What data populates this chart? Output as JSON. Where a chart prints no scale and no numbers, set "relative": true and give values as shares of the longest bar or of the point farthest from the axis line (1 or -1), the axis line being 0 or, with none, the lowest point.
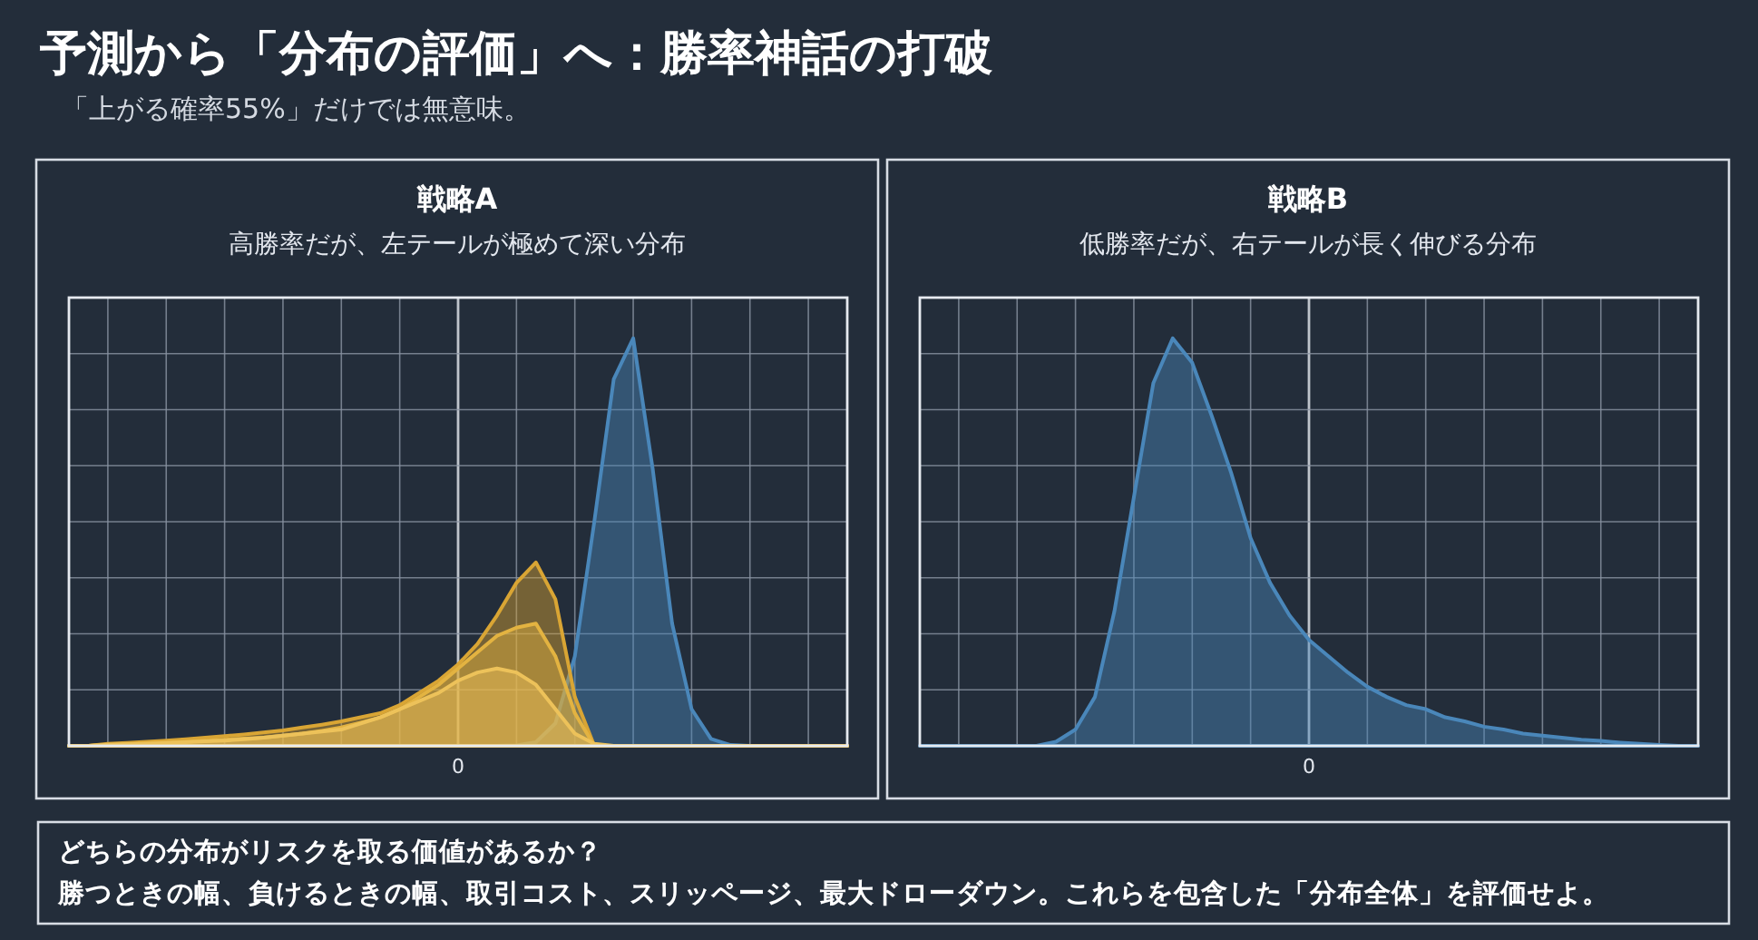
{
  "chart_data": [
    {
      "type": "other",
      "title": "予測から「分布の評価」へ：勝率神話の打破",
      "subtitle": "「上がる確率55%」だけでは無意味。"
    },
    {
      "type": "area",
      "title": "戦略A",
      "subtitle": "高勝率だが、左テールが極めて深い分布",
      "relative": true,
      "grid": true,
      "annotations": [
        "0"
      ],
      "categories": [
        null,
        null,
        null,
        null,
        null,
        null,
        null,
        null,
        null,
        null,
        null,
        null,
        null,
        null,
        null,
        null,
        null,
        null,
        null,
        null,
        null,
        null,
        null,
        null,
        null,
        null,
        null,
        null,
        null,
        null,
        null,
        null,
        null,
        null,
        null,
        null,
        null,
        null,
        null,
        null,
        null
      ],
      "series": [
        {
          "color": "#4a87ba",
          "values": [
            0,
            0,
            0,
            0,
            0,
            0,
            0,
            0,
            0,
            0,
            0,
            0,
            0,
            0,
            0,
            0,
            0,
            0,
            0,
            0,
            0,
            0,
            0,
            0.001,
            0.009,
            0.055,
            0.22,
            0.55,
            0.9,
            1,
            0.68,
            0.3,
            0.09,
            0.017,
            0.002,
            0,
            0,
            0,
            0,
            0,
            0
          ]
        },
        {
          "color": "#d9a534",
          "values": [
            0,
            0,
            0.005,
            0.007,
            0.01,
            0.013,
            0.016,
            0.02,
            0.024,
            0.028,
            0.033,
            0.038,
            0.045,
            0.052,
            0.06,
            0.07,
            0.08,
            0.1,
            0.13,
            0.16,
            0.2,
            0.25,
            0.32,
            0.4,
            0.45,
            0.36,
            0.12,
            0,
            0,
            0,
            0,
            0,
            0,
            0,
            0,
            0,
            0,
            0,
            0,
            0,
            0
          ]
        },
        {
          "color": "#e3b341",
          "values": [
            0,
            0,
            0.003,
            0.004,
            0.006,
            0.008,
            0.01,
            0.012,
            0.015,
            0.018,
            0.02,
            0.025,
            0.03,
            0.037,
            0.045,
            0.057,
            0.07,
            0.09,
            0.12,
            0.15,
            0.19,
            0.23,
            0.27,
            0.29,
            0.3,
            0.22,
            0.08,
            0,
            0,
            0,
            0,
            0,
            0,
            0,
            0,
            0,
            0,
            0,
            0,
            0,
            0
          ]
        },
        {
          "color": "#edc25a",
          "values": [
            0,
            0,
            0.003,
            0.004,
            0.005,
            0.007,
            0.009,
            0.011,
            0.013,
            0.016,
            0.02,
            0.025,
            0.03,
            0.035,
            0.04,
            0.055,
            0.07,
            0.09,
            0.11,
            0.13,
            0.16,
            0.18,
            0.19,
            0.18,
            0.15,
            0.09,
            0.03,
            0.005,
            0,
            0,
            0,
            0,
            0,
            0,
            0,
            0,
            0,
            0,
            0,
            0,
            0
          ]
        }
      ]
    },
    {
      "type": "area",
      "title": "戦略B",
      "subtitle": "低勝率だが、右テールが長く伸びる分布",
      "relative": true,
      "grid": true,
      "annotations": [
        "0"
      ],
      "categories": [
        null,
        null,
        null,
        null,
        null,
        null,
        null,
        null,
        null,
        null,
        null,
        null,
        null,
        null,
        null,
        null,
        null,
        null,
        null,
        null,
        null,
        null,
        null,
        null,
        null,
        null,
        null,
        null,
        null,
        null,
        null,
        null,
        null,
        null,
        null,
        null,
        null,
        null,
        null,
        null,
        null
      ],
      "series": [
        {
          "color": "#4a87ba",
          "values": [
            0,
            0,
            0,
            0,
            0,
            0,
            0,
            0.01,
            0.04,
            0.12,
            0.33,
            0.61,
            0.89,
            1,
            0.94,
            0.81,
            0.67,
            0.51,
            0.4,
            0.32,
            0.26,
            0.22,
            0.18,
            0.145,
            0.12,
            0.1,
            0.09,
            0.07,
            0.06,
            0.047,
            0.04,
            0.03,
            0.025,
            0.02,
            0.015,
            0.012,
            0.008,
            0.005,
            0.002,
            0,
            0
          ]
        }
      ]
    },
    {
      "type": "other",
      "annotations": [
        "どちらの分布がリスクを取る価値があるか？",
        "勝つときの幅、負けるときの幅、取引コスト、スリッページ、最大ドローダウン。これらを包含した「分布全体」を評価せよ。"
      ]
    }
  ]
}
